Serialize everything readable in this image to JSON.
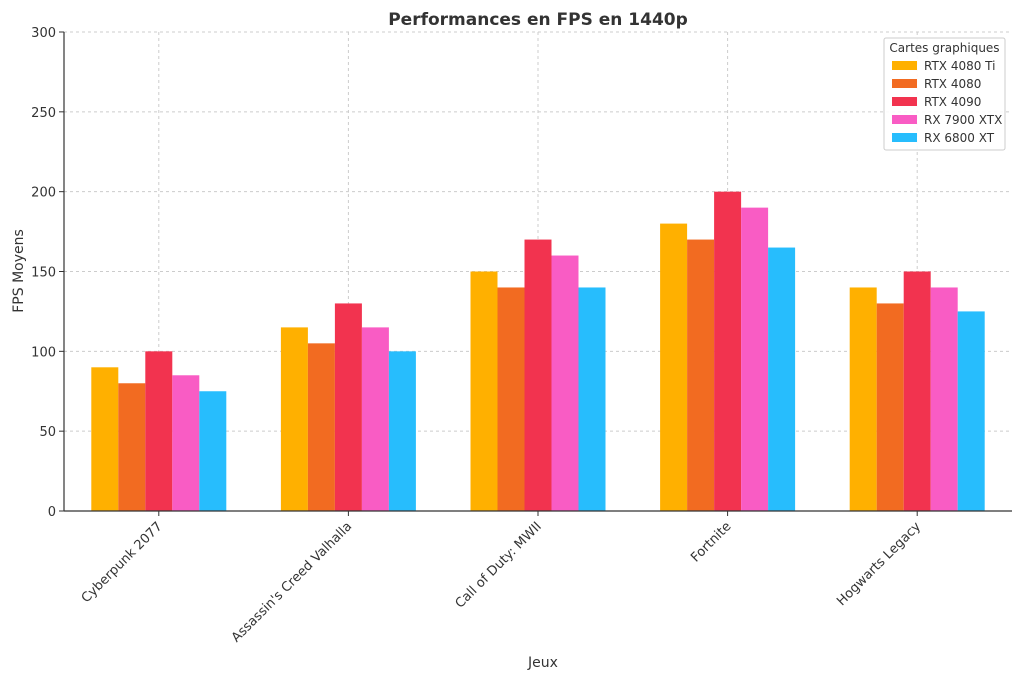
{
  "chart_data": {
    "type": "bar",
    "title": "Performances en FPS en 1440p",
    "xlabel": "Jeux",
    "ylabel": "FPS Moyens",
    "ylim": [
      0,
      300
    ],
    "yticks": [
      0,
      50,
      100,
      150,
      200,
      250,
      300
    ],
    "grid": true,
    "legend_title": "Cartes graphiques",
    "legend_position": "top-right",
    "categories": [
      "Cyberpunk 2077",
      "Assassin's Creed Valhalla",
      "Call of Duty: MWII",
      "Fortnite",
      "Hogwarts Legacy"
    ],
    "series": [
      {
        "name": "RTX 4080 Ti",
        "color": "#FFB000",
        "values": [
          90,
          115,
          150,
          180,
          140
        ]
      },
      {
        "name": "RTX 4080",
        "color": "#F26B21",
        "values": [
          80,
          105,
          140,
          170,
          130
        ]
      },
      {
        "name": "RTX 4090",
        "color": "#F2334F",
        "values": [
          100,
          130,
          170,
          200,
          150
        ]
      },
      {
        "name": "RX 7900 XTX",
        "color": "#F95CC4",
        "values": [
          85,
          115,
          160,
          190,
          140
        ]
      },
      {
        "name": "RX 6800 XT",
        "color": "#27BDFD",
        "values": [
          75,
          100,
          140,
          165,
          125
        ]
      }
    ]
  }
}
